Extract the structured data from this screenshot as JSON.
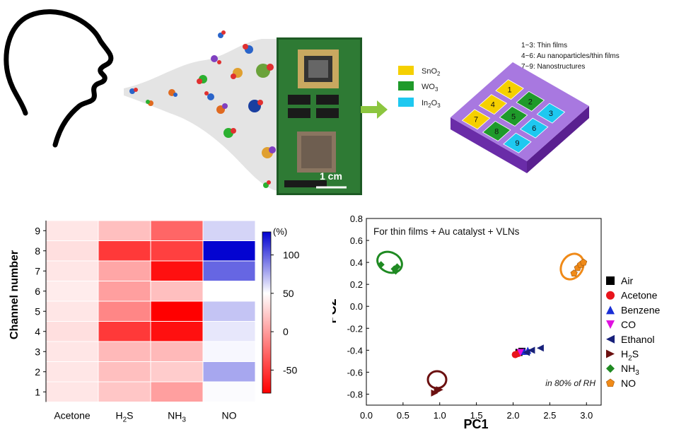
{
  "scale_bar_label": "1 cm",
  "materials": [
    {
      "label": "SnO",
      "sub": "2",
      "color": "#f5d000"
    },
    {
      "label": "WO",
      "sub": "3",
      "color": "#1f9a2a"
    },
    {
      "label": "In",
      "sub": "2",
      "label2": "O",
      "sub2": "3",
      "color": "#1ec8f0"
    }
  ],
  "chip_notes": [
    "1~3: Thin films",
    "4~6: Au nanoparticles/thin films",
    "7~9: Nanostructures"
  ],
  "chip_channels": [
    {
      "n": "1",
      "material": "SnO2",
      "color": "#f5d000"
    },
    {
      "n": "2",
      "material": "WO3",
      "color": "#1f9a2a"
    },
    {
      "n": "3",
      "material": "In2O3",
      "color": "#1ec8f0"
    },
    {
      "n": "4",
      "material": "SnO2",
      "color": "#f5d000"
    },
    {
      "n": "5",
      "material": "WO3",
      "color": "#1f9a2a"
    },
    {
      "n": "6",
      "material": "In2O3",
      "color": "#1ec8f0"
    },
    {
      "n": "7",
      "material": "SnO2",
      "color": "#f5d000"
    },
    {
      "n": "8",
      "material": "WO3",
      "color": "#1f9a2a"
    },
    {
      "n": "9",
      "material": "In2O3",
      "color": "#1ec8f0"
    }
  ],
  "chart_data": [
    {
      "type": "heatmap",
      "ylabel": "Channel number",
      "x_categories": [
        {
          "text": "Acetone"
        },
        {
          "text": "H",
          "sub": "2",
          "text2": "S"
        },
        {
          "text": "NH",
          "sub": "3"
        },
        {
          "text": "NO"
        }
      ],
      "y_categories": [
        "1",
        "2",
        "3",
        "4",
        "5",
        "6",
        "7",
        "8",
        "9"
      ],
      "values": [
        [
          -8,
          -18,
          -30,
          2
        ],
        [
          -8,
          -20,
          -16,
          45
        ],
        [
          -8,
          -22,
          -22,
          4
        ],
        [
          -10,
          -62,
          -75,
          12
        ],
        [
          -8,
          -38,
          -80,
          30
        ],
        [
          -6,
          -30,
          -20,
          0
        ],
        [
          -8,
          -28,
          -75,
          78
        ],
        [
          -10,
          -62,
          -60,
          128
        ],
        [
          -8,
          -20,
          -48,
          22
        ]
      ],
      "colorbar": {
        "label": "(%)",
        "ticks": [
          100,
          50,
          0,
          -50
        ],
        "range": [
          -80,
          130
        ]
      }
    },
    {
      "type": "scatter",
      "annotation": "For thin films + Au catalyst + VLNs",
      "condition": "in 80% of RH",
      "xlabel": "PC1",
      "ylabel": "PC2",
      "xlim": [
        0.0,
        3.2
      ],
      "ylim": [
        -0.9,
        0.8
      ],
      "xticks": [
        "0.0",
        "0.5",
        "1.0",
        "1.5",
        "2.0",
        "2.5",
        "3.0"
      ],
      "yticks": [
        "0.8",
        "0.6",
        "0.4",
        "0.2",
        "0.0",
        "-0.2",
        "-0.4",
        "-0.6",
        "-0.8"
      ],
      "series": [
        {
          "name": "Air",
          "marker": "square",
          "color": "#000000",
          "points": [
            [
              2.08,
              -0.42
            ],
            [
              2.12,
              -0.41
            ]
          ]
        },
        {
          "name": "Acetone",
          "marker": "circle",
          "color": "#e8141c",
          "points": [
            [
              2.03,
              -0.44
            ],
            [
              2.07,
              -0.43
            ]
          ]
        },
        {
          "name": "Benzene",
          "marker": "triangle-up",
          "color": "#1a2fd6",
          "points": [
            [
              2.15,
              -0.41
            ],
            [
              2.2,
              -0.4
            ]
          ]
        },
        {
          "name": "CO",
          "marker": "triangle-down",
          "color": "#e010e0",
          "points": [
            [
              2.1,
              -0.42
            ]
          ]
        },
        {
          "name": "Ethanol",
          "marker": "triangle-left",
          "color": "#17207a",
          "points": [
            [
              2.25,
              -0.4
            ],
            [
              2.37,
              -0.38
            ],
            [
              2.18,
              -0.42
            ]
          ]
        },
        {
          "name": "H",
          "sub": "2",
          "name2": "S",
          "marker": "triangle-right",
          "color": "#6b1010",
          "points": [
            [
              0.93,
              -0.79
            ],
            [
              0.97,
              -0.77
            ],
            [
              1.0,
              -0.76
            ]
          ]
        },
        {
          "name": "NH",
          "sub": "3",
          "marker": "diamond",
          "color": "#1f8a22",
          "points": [
            [
              0.2,
              0.38
            ],
            [
              0.38,
              0.34
            ],
            [
              0.42,
              0.36
            ],
            [
              0.4,
              0.32
            ]
          ]
        },
        {
          "name": "NO",
          "marker": "pentagon",
          "color": "#f08a18",
          "points": [
            [
              2.83,
              0.3
            ],
            [
              2.88,
              0.35
            ],
            [
              2.92,
              0.38
            ],
            [
              2.96,
              0.4
            ]
          ]
        }
      ]
    }
  ]
}
